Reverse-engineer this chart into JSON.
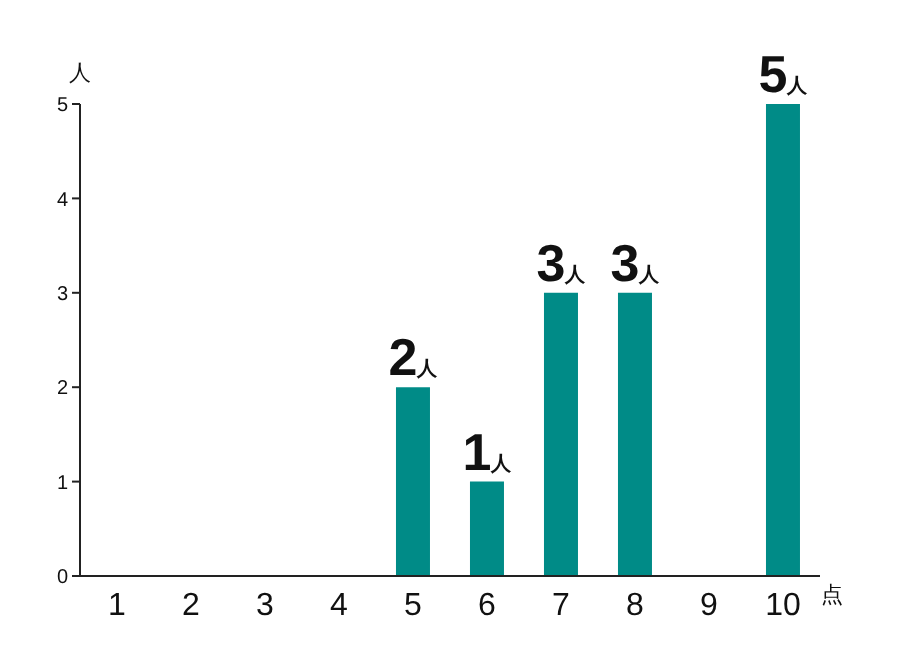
{
  "chart_data": {
    "type": "bar",
    "xlabel": "点",
    "ylabel": "人",
    "categories": [
      "1",
      "2",
      "3",
      "4",
      "5",
      "6",
      "7",
      "8",
      "9",
      "10"
    ],
    "values": [
      0,
      0,
      0,
      0,
      2,
      1,
      3,
      3,
      0,
      5
    ],
    "value_labels": [
      null,
      null,
      null,
      null,
      "2人",
      "1人",
      "3人",
      "3人",
      null,
      "5人"
    ],
    "color": "#008b87",
    "ylim": [
      0,
      5
    ],
    "yticks": [
      0,
      1,
      2,
      3,
      4,
      5
    ],
    "grid": false,
    "legend": false
  }
}
